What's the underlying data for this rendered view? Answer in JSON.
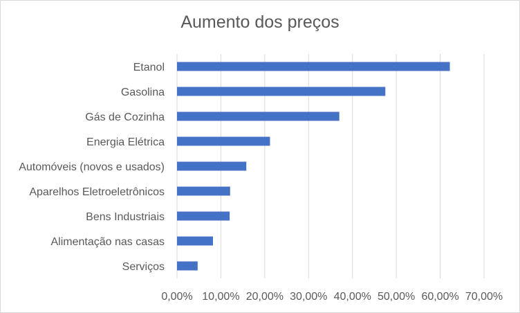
{
  "chart_data": {
    "type": "bar",
    "orientation": "horizontal",
    "title": "Aumento dos preços",
    "categories": [
      "Etanol",
      "Gasolina",
      "Gás de Cozinha",
      "Energia Elétrica",
      "Automóveis (novos e usados)",
      "Aparelhos Eletroeletrônicos",
      "Bens Industriais",
      "Alimentação nas casas",
      "Serviços"
    ],
    "values": [
      62.2,
      47.5,
      37.0,
      21.2,
      15.8,
      12.1,
      12.0,
      8.2,
      4.7
    ],
    "xlim": [
      0,
      70
    ],
    "xticks": [
      "0,00%",
      "10,00%",
      "20,00%",
      "30,00%",
      "40,00%",
      "50,00%",
      "60,00%",
      "70,00%"
    ],
    "xlabel": "",
    "ylabel": "",
    "grid": "vertical",
    "legend": "none",
    "bar_color": "#4472C4",
    "grid_color": "#d9d9d9"
  }
}
